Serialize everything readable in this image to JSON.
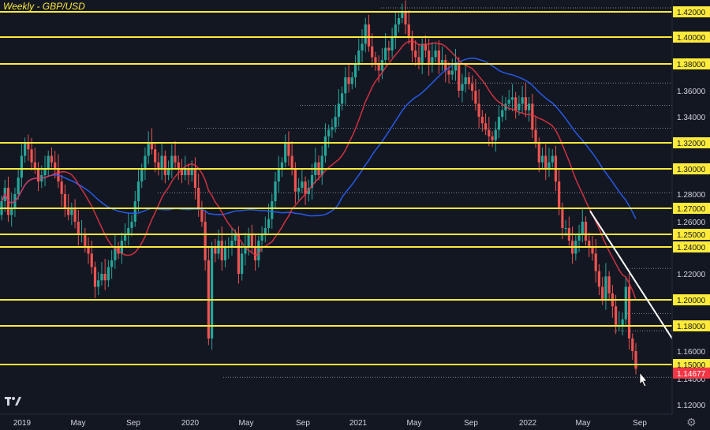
{
  "title": "Weekly - GBP/USD",
  "settings_icon_glyph": "⚙",
  "chart_data": {
    "type": "candlestick",
    "symbol": "GBP/USD",
    "timeframe": "Weekly",
    "x_axis_labels": [
      "2019",
      "May",
      "Sep",
      "2020",
      "May",
      "Sep",
      "2021",
      "May",
      "Sep",
      "2022",
      "May",
      "Sep"
    ],
    "y_axis_ticks": [
      "1.42000",
      "1.40000",
      "1.38000",
      "1.36000",
      "1.34000",
      "1.32000",
      "1.30000",
      "1.28000",
      "1.27000",
      "1.26000",
      "1.25000",
      "1.24000",
      "1.22000",
      "1.20000",
      "1.18000",
      "1.16000",
      "1.15000",
      "1.14000",
      "1.12000"
    ],
    "highlighted_ticks": [
      "1.42000",
      "1.40000",
      "1.38000",
      "1.32000",
      "1.30000",
      "1.27000",
      "1.25000",
      "1.24000",
      "1.20000",
      "1.18000",
      "1.15000"
    ],
    "current_price": "1.14677",
    "ylim": [
      1.11,
      1.425
    ],
    "horizontal_levels": [
      1.42,
      1.4,
      1.38,
      1.32,
      1.3,
      1.27,
      1.25,
      1.24,
      1.2,
      1.18,
      1.15
    ],
    "dotted_levels": [
      1.423,
      1.3657,
      1.3488,
      1.3312,
      1.281,
      1.224,
      1.1895,
      1.176,
      1.141
    ],
    "close_series": [
      1.275,
      1.285,
      1.265,
      1.27,
      1.28,
      1.293,
      1.31,
      1.32,
      1.315,
      1.305,
      1.3,
      1.29,
      1.295,
      1.3,
      1.31,
      1.305,
      1.3,
      1.29,
      1.28,
      1.27,
      1.265,
      1.27,
      1.26,
      1.25,
      1.25,
      1.24,
      1.235,
      1.225,
      1.21,
      1.215,
      1.22,
      1.215,
      1.225,
      1.23,
      1.24,
      1.235,
      1.245,
      1.25,
      1.255,
      1.26,
      1.275,
      1.29,
      1.3,
      1.31,
      1.32,
      1.315,
      1.305,
      1.3,
      1.31,
      1.295,
      1.3,
      1.31,
      1.305,
      1.3,
      1.295,
      1.3,
      1.295,
      1.3,
      1.285,
      1.27,
      1.26,
      1.23,
      1.17,
      1.24,
      1.235,
      1.245,
      1.23,
      1.24,
      1.24,
      1.245,
      1.25,
      1.22,
      1.235,
      1.24,
      1.25,
      1.24,
      1.23,
      1.245,
      1.25,
      1.255,
      1.262,
      1.275,
      1.29,
      1.3,
      1.305,
      1.32,
      1.31,
      1.3,
      1.282,
      1.285,
      1.29,
      1.28,
      1.285,
      1.295,
      1.305,
      1.295,
      1.31,
      1.325,
      1.33,
      1.332,
      1.34,
      1.35,
      1.358,
      1.37,
      1.365,
      1.37,
      1.38,
      1.39,
      1.395,
      1.41,
      1.393,
      1.385,
      1.38,
      1.375,
      1.383,
      1.392,
      1.39,
      1.4,
      1.41,
      1.415,
      1.42,
      1.41,
      1.4,
      1.39,
      1.385,
      1.38,
      1.395,
      1.39,
      1.38,
      1.385,
      1.39,
      1.38,
      1.383,
      1.375,
      1.372,
      1.375,
      1.38,
      1.36,
      1.365,
      1.37,
      1.365,
      1.36,
      1.35,
      1.34,
      1.335,
      1.33,
      1.325,
      1.322,
      1.33,
      1.34,
      1.345,
      1.35,
      1.353,
      1.355,
      1.345,
      1.35,
      1.355,
      1.345,
      1.35,
      1.33,
      1.32,
      1.305,
      1.31,
      1.3,
      1.305,
      1.31,
      1.29,
      1.27,
      1.255,
      1.255,
      1.245,
      1.235,
      1.245,
      1.25,
      1.26,
      1.245,
      1.24,
      1.235,
      1.222,
      1.21,
      1.2,
      1.218,
      1.205,
      1.195,
      1.18,
      1.18,
      1.185,
      1.21,
      1.17,
      1.16,
      1.147
    ],
    "ema_fast_name": "",
    "ema_slow_name": "",
    "annotation": "downtrend line"
  }
}
